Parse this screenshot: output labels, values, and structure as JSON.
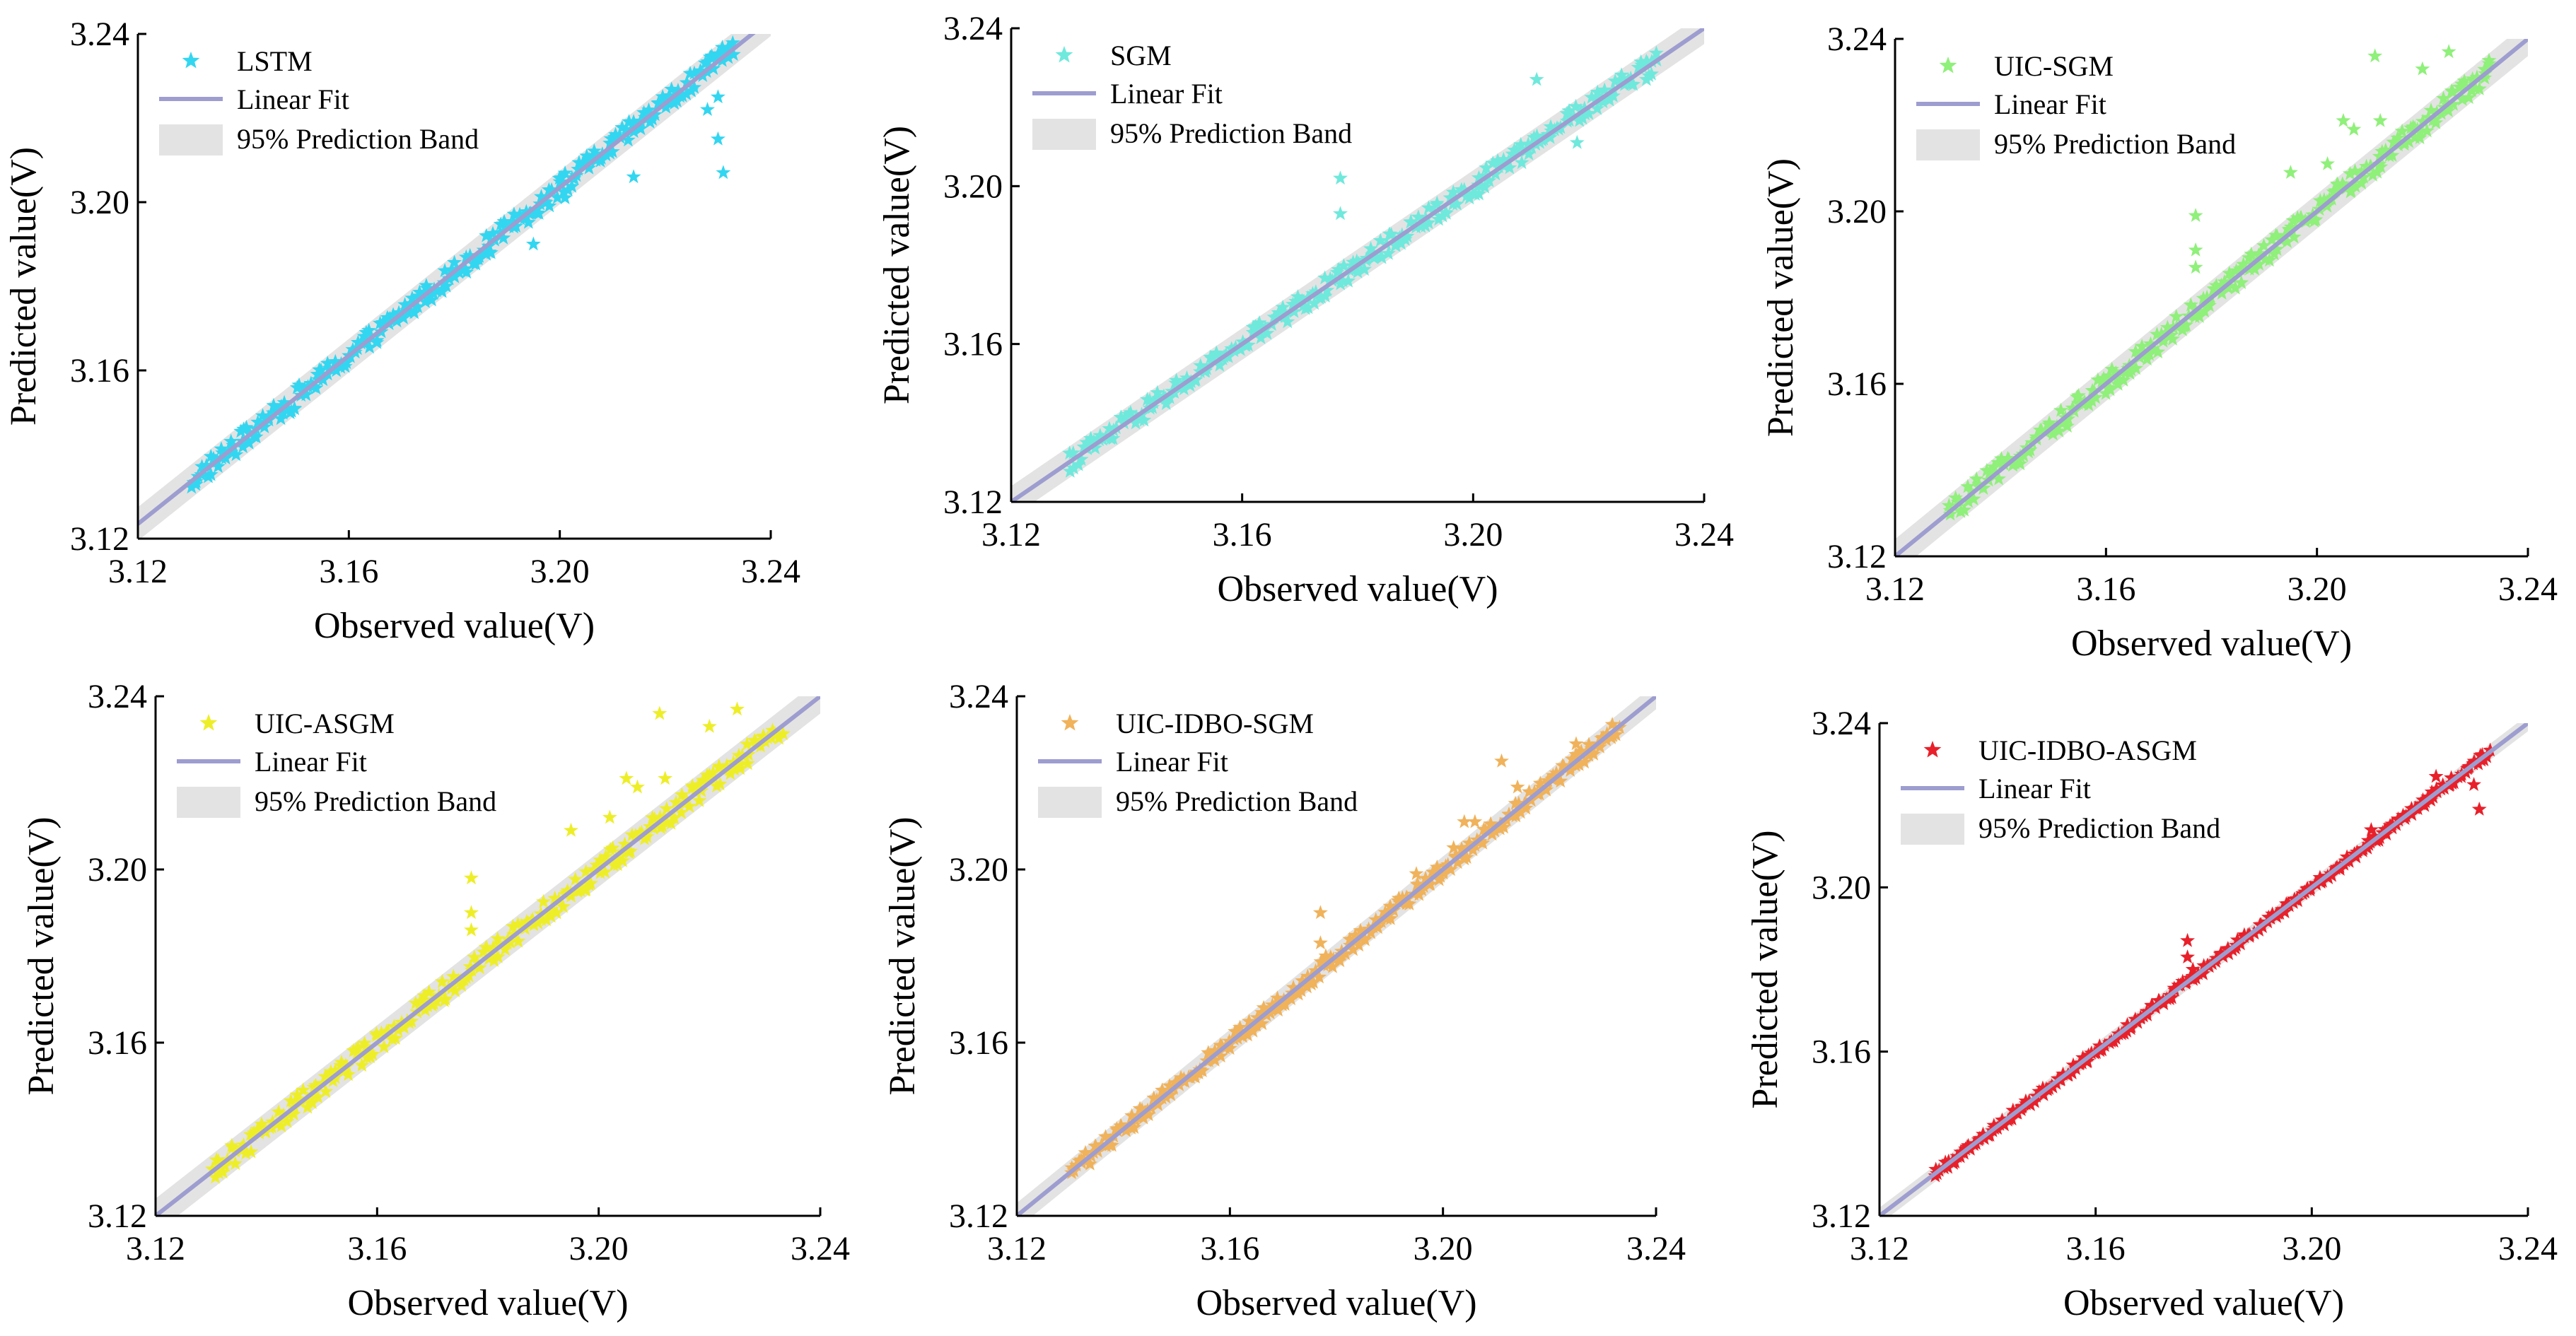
{
  "chart_data": [
    {
      "type": "scatter",
      "panel": "top-left",
      "series_name": "LSTM",
      "marker_color": "#33d6f0",
      "fit_label": "Linear Fit",
      "band_label": "95% Prediction Band",
      "fit_color": "#9d9dd0",
      "band_color": "#e3e3e3",
      "xlabel": "Observed value(V)",
      "ylabel": "Predicted value(V)",
      "xlim": [
        3.12,
        3.24
      ],
      "ylim": [
        3.12,
        3.24
      ],
      "ticks": [
        3.12,
        3.16,
        3.2,
        3.24
      ],
      "tick_labels": [
        "3.12",
        "3.16",
        "3.20",
        "3.24"
      ],
      "fit": {
        "slope": 1.0,
        "intercept": 0.0035
      },
      "band_halfwidth": 0.004,
      "scatter_range": [
        3.13,
        3.233
      ],
      "scatter_noise": 0.0025,
      "outliers": [
        [
          3.195,
          3.19
        ],
        [
          3.201,
          3.201
        ],
        [
          3.214,
          3.206
        ],
        [
          3.228,
          3.222
        ],
        [
          3.23,
          3.215
        ],
        [
          3.231,
          3.207
        ],
        [
          3.23,
          3.225
        ],
        [
          3.21,
          3.212
        ]
      ],
      "legend_position": "top-left"
    },
    {
      "type": "scatter",
      "panel": "top-middle",
      "series_name": "SGM",
      "marker_color": "#6fe9dc",
      "fit_label": "Linear Fit",
      "band_label": "95% Prediction Band",
      "fit_color": "#9d9dd0",
      "band_color": "#e3e3e3",
      "xlabel": "Observed value(V)",
      "ylabel": "Predicted value(V)",
      "xlim": [
        3.12,
        3.24
      ],
      "ylim": [
        3.12,
        3.24
      ],
      "ticks": [
        3.12,
        3.16,
        3.2,
        3.24
      ],
      "tick_labels": [
        "3.12",
        "3.16",
        "3.20",
        "3.24"
      ],
      "fit": {
        "slope": 1.0,
        "intercept": 0.0
      },
      "band_halfwidth": 0.004,
      "scatter_range": [
        3.13,
        3.232
      ],
      "scatter_noise": 0.0025,
      "outliers": [
        [
          3.177,
          3.202
        ],
        [
          3.177,
          3.193
        ],
        [
          3.201,
          3.198
        ],
        [
          3.211,
          3.227
        ],
        [
          3.218,
          3.211
        ],
        [
          3.23,
          3.227
        ]
      ],
      "legend_position": "top-left"
    },
    {
      "type": "scatter",
      "panel": "top-right",
      "series_name": "UIC-SGM",
      "marker_color": "#8ff07a",
      "fit_label": "Linear Fit",
      "band_label": "95% Prediction Band",
      "fit_color": "#9d9dd0",
      "band_color": "#e3e3e3",
      "xlabel": "Observed value(V)",
      "ylabel": "Predicted value(V)",
      "xlim": [
        3.12,
        3.24
      ],
      "ylim": [
        3.12,
        3.24
      ],
      "ticks": [
        3.12,
        3.16,
        3.2,
        3.24
      ],
      "tick_labels": [
        "3.12",
        "3.16",
        "3.20",
        "3.24"
      ],
      "fit": {
        "slope": 1.0,
        "intercept": 0.0
      },
      "band_halfwidth": 0.004,
      "scatter_range": [
        3.13,
        3.233
      ],
      "scatter_noise": 0.0025,
      "outliers": [
        [
          3.177,
          3.199
        ],
        [
          3.177,
          3.191
        ],
        [
          3.177,
          3.187
        ],
        [
          3.195,
          3.209
        ],
        [
          3.202,
          3.211
        ],
        [
          3.205,
          3.221
        ],
        [
          3.207,
          3.219
        ],
        [
          3.211,
          3.236
        ],
        [
          3.212,
          3.221
        ],
        [
          3.22,
          3.233
        ],
        [
          3.225,
          3.237
        ]
      ],
      "legend_position": "top-left"
    },
    {
      "type": "scatter",
      "panel": "bottom-left",
      "series_name": "UIC-ASGM",
      "marker_color": "#eeee28",
      "fit_label": "Linear Fit",
      "band_label": "95% Prediction Band",
      "fit_color": "#9d9dd0",
      "band_color": "#e3e3e3",
      "xlabel": "Observed value(V)",
      "ylabel": "Predicted value(V)",
      "xlim": [
        3.12,
        3.24
      ],
      "ylim": [
        3.12,
        3.24
      ],
      "ticks": [
        3.12,
        3.16,
        3.2,
        3.24
      ],
      "tick_labels": [
        "3.12",
        "3.16",
        "3.20",
        "3.24"
      ],
      "fit": {
        "slope": 1.0,
        "intercept": 0.0
      },
      "band_halfwidth": 0.004,
      "scatter_range": [
        3.13,
        3.233
      ],
      "scatter_noise": 0.0025,
      "outliers": [
        [
          3.177,
          3.198
        ],
        [
          3.177,
          3.19
        ],
        [
          3.177,
          3.186
        ],
        [
          3.195,
          3.209
        ],
        [
          3.202,
          3.212
        ],
        [
          3.205,
          3.221
        ],
        [
          3.207,
          3.219
        ],
        [
          3.211,
          3.236
        ],
        [
          3.212,
          3.221
        ],
        [
          3.22,
          3.233
        ],
        [
          3.225,
          3.237
        ]
      ],
      "legend_position": "top-left"
    },
    {
      "type": "scatter",
      "panel": "bottom-middle",
      "series_name": "UIC-IDBO-SGM",
      "marker_color": "#f0b25a",
      "fit_label": "Linear Fit",
      "band_label": "95% Prediction Band",
      "fit_color": "#9d9dd0",
      "band_color": "#e3e3e3",
      "xlabel": "Observed value(V)",
      "ylabel": "Predicted value(V)",
      "xlim": [
        3.12,
        3.24
      ],
      "ylim": [
        3.12,
        3.24
      ],
      "ticks": [
        3.12,
        3.16,
        3.2,
        3.24
      ],
      "tick_labels": [
        "3.12",
        "3.16",
        "3.20",
        "3.24"
      ],
      "fit": {
        "slope": 1.0,
        "intercept": 0.0
      },
      "band_halfwidth": 0.003,
      "scatter_range": [
        3.13,
        3.233
      ],
      "scatter_noise": 0.0018,
      "outliers": [
        [
          3.177,
          3.19
        ],
        [
          3.177,
          3.183
        ],
        [
          3.178,
          3.18
        ],
        [
          3.195,
          3.199
        ],
        [
          3.202,
          3.205
        ],
        [
          3.204,
          3.211
        ],
        [
          3.206,
          3.211
        ],
        [
          3.211,
          3.225
        ],
        [
          3.214,
          3.219
        ],
        [
          3.221,
          3.221
        ],
        [
          3.225,
          3.229
        ]
      ],
      "legend_position": "top-left"
    },
    {
      "type": "scatter",
      "panel": "bottom-right",
      "series_name": "UIC-IDBO-ASGM",
      "marker_color": "#e8202a",
      "fit_label": "Linear Fit",
      "band_label": "95% Prediction Band",
      "fit_color": "#9d9dd0",
      "band_color": "#e3e3e3",
      "xlabel": "Observed value(V)",
      "ylabel": "Predicted value(V)",
      "xlim": [
        3.12,
        3.24
      ],
      "ylim": [
        3.12,
        3.24
      ],
      "ticks": [
        3.12,
        3.16,
        3.2,
        3.24
      ],
      "tick_labels": [
        "3.12",
        "3.16",
        "3.20",
        "3.24"
      ],
      "fit": {
        "slope": 1.0,
        "intercept": 0.0
      },
      "band_halfwidth": 0.002,
      "scatter_range": [
        3.13,
        3.233
      ],
      "scatter_noise": 0.001,
      "outliers": [
        [
          3.177,
          3.187
        ],
        [
          3.177,
          3.183
        ],
        [
          3.178,
          3.18
        ],
        [
          3.195,
          3.194
        ],
        [
          3.211,
          3.214
        ],
        [
          3.223,
          3.227
        ],
        [
          3.23,
          3.225
        ],
        [
          3.231,
          3.219
        ]
      ],
      "legend_position": "top-left"
    }
  ]
}
